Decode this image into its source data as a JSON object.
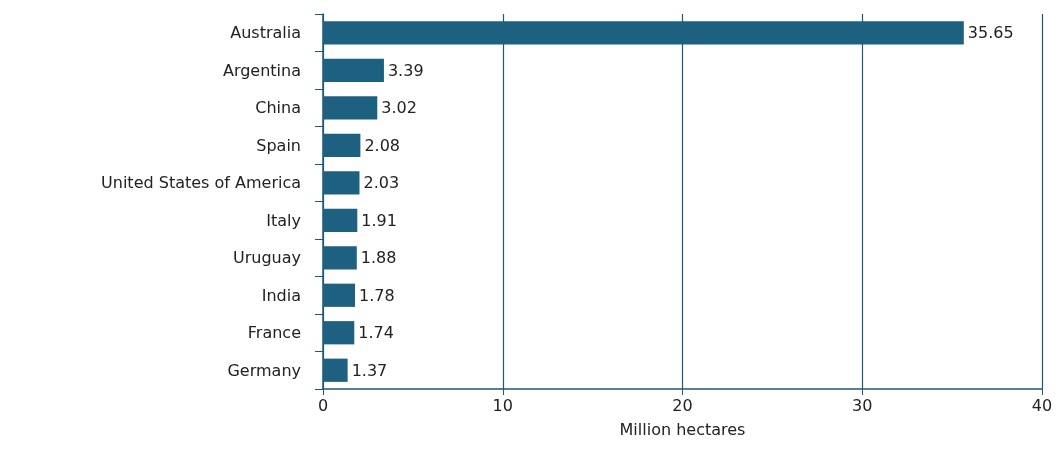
{
  "chart_data": {
    "type": "bar",
    "orientation": "horizontal",
    "xlabel": "Million hectares",
    "categories": [
      "Australia",
      "Argentina",
      "China",
      "Spain",
      "United States of America",
      "Italy",
      "Uruguay",
      "India",
      "France",
      "Germany"
    ],
    "values": [
      35.65,
      3.39,
      3.02,
      2.08,
      2.03,
      1.91,
      1.88,
      1.78,
      1.74,
      1.37
    ],
    "color": "#1e6080",
    "xlim": [
      0,
      40
    ],
    "xticks": [
      0,
      10,
      20,
      30,
      40
    ],
    "grid": "x",
    "data_labels": true
  }
}
